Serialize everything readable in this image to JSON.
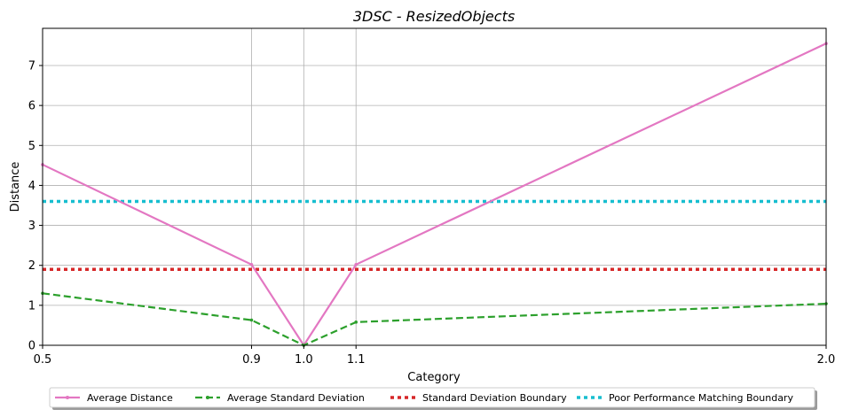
{
  "chart_data": {
    "type": "line",
    "title": "3DSC - ResizedObjects",
    "xlabel": "Category",
    "ylabel": "Distance",
    "x": [
      0.5,
      0.9,
      1.0,
      1.1,
      2.0
    ],
    "x_tick_labels": [
      "0.5",
      "0.9",
      "1.0",
      "1.1",
      "2.0"
    ],
    "xlim": [
      0.5,
      2.0
    ],
    "ylim": [
      0,
      7.93
    ],
    "y_ticks": [
      0,
      1,
      2,
      3,
      4,
      5,
      6,
      7
    ],
    "y_tick_labels": [
      "0",
      "1",
      "2",
      "3",
      "4",
      "5",
      "6",
      "7"
    ],
    "grid": true,
    "series": [
      {
        "name": "Average Distance",
        "values": [
          4.52,
          2.02,
          0.0,
          2.02,
          7.55
        ],
        "color": "#e377c2",
        "style": "solid",
        "marker": "dot"
      },
      {
        "name": "Average Standard Deviation",
        "values": [
          1.3,
          0.63,
          0.0,
          0.58,
          1.04
        ],
        "color": "#2ca02c",
        "style": "dashed",
        "marker": "dot"
      }
    ],
    "reference_lines": [
      {
        "name": "Standard Deviation Boundary",
        "value": 1.9,
        "color": "#d62728",
        "style": "dotted"
      },
      {
        "name": "Poor Performance Matching Boundary",
        "value": 3.6,
        "color": "#17becf",
        "style": "dotted"
      }
    ],
    "legend_position": "bottom-center"
  }
}
